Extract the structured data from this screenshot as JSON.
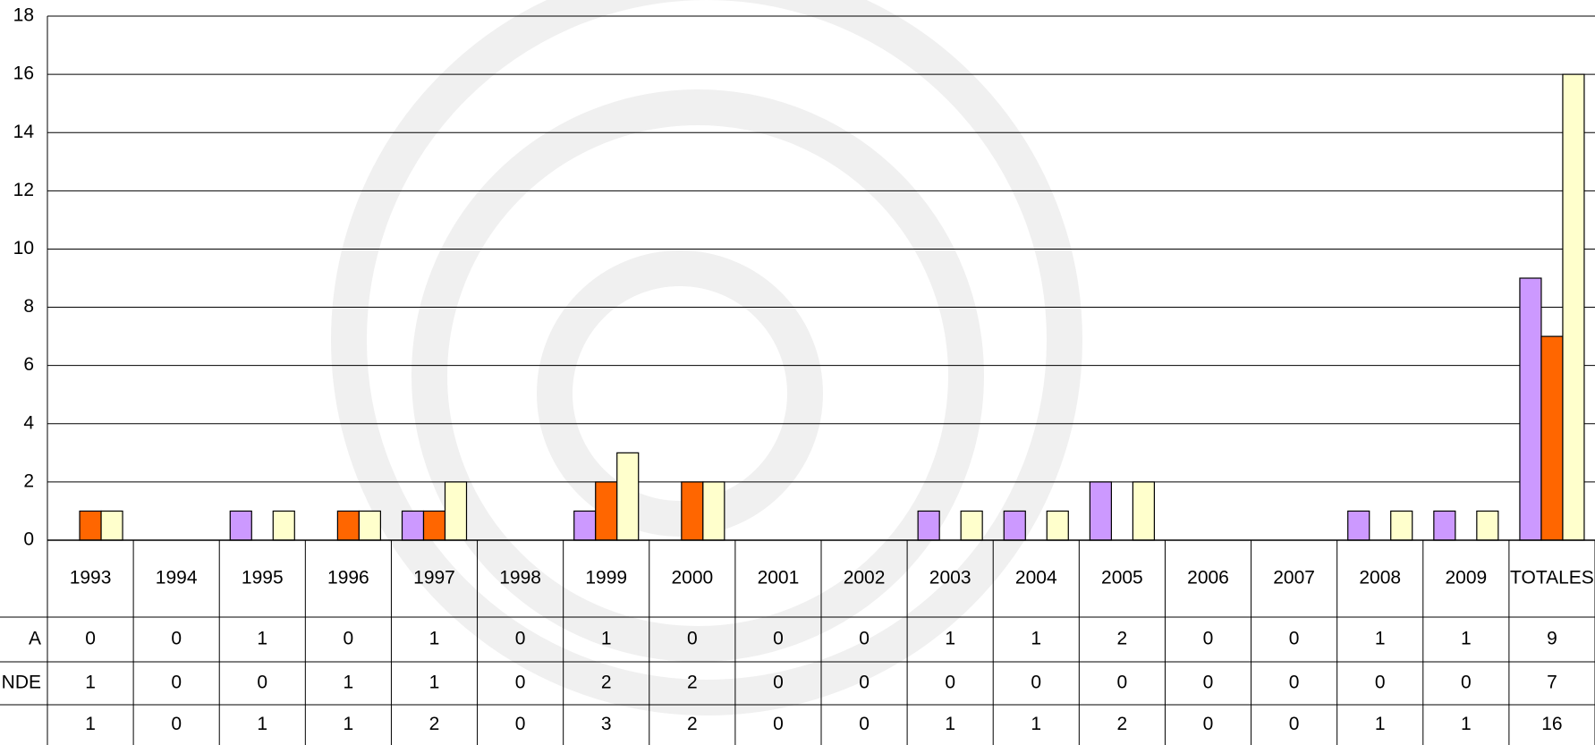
{
  "chart_data": {
    "type": "bar",
    "categories": [
      "1993",
      "1994",
      "1995",
      "1996",
      "1997",
      "1998",
      "1999",
      "2000",
      "2001",
      "2002",
      "2003",
      "2004",
      "2005",
      "2006",
      "2007",
      "2008",
      "2009",
      "TOTALES"
    ],
    "series": [
      {
        "name": "A",
        "color": "#cc99ff",
        "values": [
          0,
          0,
          1,
          0,
          1,
          0,
          1,
          0,
          0,
          0,
          1,
          1,
          2,
          0,
          0,
          1,
          1,
          9
        ]
      },
      {
        "name": "NDE",
        "color": "#ff6600",
        "values": [
          1,
          0,
          0,
          1,
          1,
          0,
          2,
          2,
          0,
          0,
          0,
          0,
          0,
          0,
          0,
          0,
          0,
          7
        ]
      },
      {
        "color": "#ffffcc",
        "values": [
          1,
          0,
          1,
          1,
          2,
          0,
          3,
          2,
          0,
          0,
          1,
          1,
          2,
          0,
          0,
          1,
          1,
          16
        ]
      }
    ],
    "ylim": [
      0,
      18
    ],
    "yticks": [
      0,
      2,
      4,
      6,
      8,
      10,
      12,
      14,
      16,
      18
    ],
    "grid": true,
    "data_table": true
  }
}
